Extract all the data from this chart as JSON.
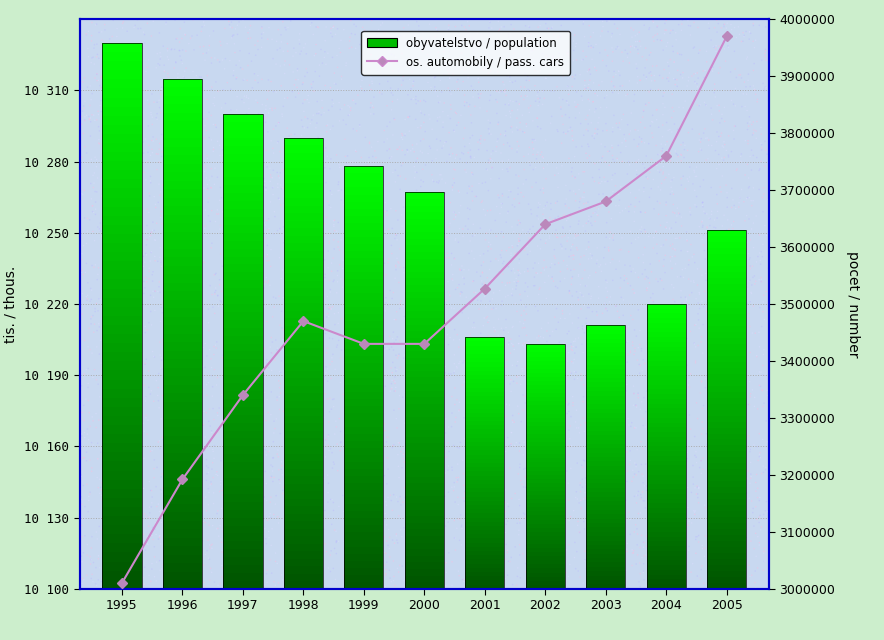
{
  "years": [
    1995,
    1996,
    1997,
    1998,
    1999,
    2000,
    2001,
    2002,
    2003,
    2004,
    2005
  ],
  "population": [
    10330,
    10315,
    10300,
    10290,
    10278,
    10267,
    10206,
    10203,
    10211,
    10220,
    10251
  ],
  "passenger_cars": [
    3010000,
    3192000,
    3340000,
    3470000,
    3430000,
    3430000,
    3527000,
    3640000,
    3680000,
    3760000,
    3970000
  ],
  "ylim_left": [
    10100,
    10340
  ],
  "ylim_right": [
    3000000,
    4000000
  ],
  "yticks_left": [
    10100,
    10130,
    10160,
    10190,
    10220,
    10250,
    10280,
    10310
  ],
  "yticks_right": [
    3000000,
    3100000,
    3200000,
    3300000,
    3400000,
    3500000,
    3600000,
    3700000,
    3800000,
    3900000,
    4000000
  ],
  "ytick_labels_right": [
    "3000000",
    "3100000",
    "3200000",
    "3300000",
    "3400000",
    "3500000",
    "3600000",
    "3700000",
    "3800000",
    "3900000",
    "4000000"
  ],
  "ytick_labels_left": [
    "10 100",
    "10 130",
    "10 160",
    "10 190",
    "10 220",
    "10 250",
    "10 280",
    "10 310"
  ],
  "ylabel_left": "tis. / thous.",
  "ylabel_right": "pocet / number",
  "legend_bar": "obyvatelstvo / population",
  "legend_line": "os. automobily / pass. cars",
  "line_color": "#cc88cc",
  "marker_color": "#bb88bb",
  "bg_plot_base": "#c8d8f0",
  "bg_figure": "#cceecc",
  "border_color": "#0000cc",
  "bar_width": 0.65
}
